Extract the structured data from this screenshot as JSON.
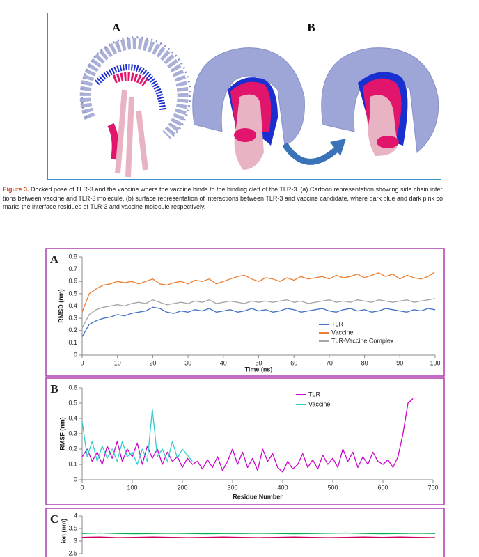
{
  "figure": {
    "labels": [
      "A",
      "B"
    ],
    "caption_label": "Figure 3.",
    "caption_lines": [
      "Docked pose of TLR-3 and the vaccine where the vaccine binds to the binding cleft of the TLR-3. (a) Cartoon representation showing side chain inter",
      "tions between vaccine and TLR-3 molecule, (b) surface representation of interactions between TLR-3 and vaccine candidate, where dark blue and dark pink co",
      "marks the interface residues of TLR-3 and vaccine molecule respectively."
    ]
  },
  "chart_data": [
    {
      "type": "line",
      "panel": "A",
      "xlabel": "Time (ns)",
      "ylabel": "RMSD (nm)",
      "legend": "lower right",
      "xlim": [
        0,
        100
      ],
      "xticks": [
        0,
        10,
        20,
        30,
        40,
        50,
        60,
        70,
        80,
        90,
        100
      ],
      "ylim": [
        0,
        0.8
      ],
      "yticks": [
        0,
        0.1,
        0.2,
        0.3,
        0.4,
        0.5,
        0.6,
        0.7,
        0.8
      ],
      "x": [
        0,
        2,
        4,
        6,
        8,
        10,
        12,
        14,
        16,
        18,
        20,
        22,
        24,
        26,
        28,
        30,
        32,
        34,
        36,
        38,
        40,
        42,
        44,
        46,
        48,
        50,
        52,
        54,
        56,
        58,
        60,
        62,
        64,
        66,
        68,
        70,
        72,
        74,
        76,
        78,
        80,
        82,
        84,
        86,
        88,
        90,
        92,
        94,
        96,
        98,
        100
      ],
      "series": [
        {
          "name": "TLR",
          "color": "#4472c4",
          "values": [
            0.15,
            0.25,
            0.28,
            0.3,
            0.31,
            0.33,
            0.32,
            0.34,
            0.35,
            0.36,
            0.39,
            0.38,
            0.35,
            0.34,
            0.36,
            0.35,
            0.37,
            0.36,
            0.38,
            0.35,
            0.36,
            0.37,
            0.35,
            0.36,
            0.38,
            0.36,
            0.37,
            0.35,
            0.36,
            0.38,
            0.37,
            0.35,
            0.36,
            0.37,
            0.38,
            0.36,
            0.35,
            0.37,
            0.38,
            0.36,
            0.37,
            0.35,
            0.36,
            0.38,
            0.37,
            0.36,
            0.35,
            0.37,
            0.36,
            0.38,
            0.37
          ]
        },
        {
          "name": "Vaccine",
          "color": "#ed7d31",
          "values": [
            0.35,
            0.5,
            0.54,
            0.57,
            0.58,
            0.6,
            0.59,
            0.6,
            0.58,
            0.6,
            0.62,
            0.58,
            0.57,
            0.59,
            0.6,
            0.58,
            0.61,
            0.6,
            0.62,
            0.58,
            0.6,
            0.62,
            0.64,
            0.65,
            0.62,
            0.6,
            0.63,
            0.62,
            0.6,
            0.63,
            0.61,
            0.64,
            0.62,
            0.63,
            0.64,
            0.62,
            0.65,
            0.63,
            0.64,
            0.66,
            0.63,
            0.65,
            0.67,
            0.64,
            0.66,
            0.62,
            0.65,
            0.63,
            0.62,
            0.64,
            0.68
          ]
        },
        {
          "name": "TLR-Vaccine Complex",
          "color": "#a5a5a5",
          "values": [
            0.22,
            0.33,
            0.37,
            0.39,
            0.4,
            0.41,
            0.4,
            0.42,
            0.43,
            0.42,
            0.45,
            0.43,
            0.41,
            0.42,
            0.43,
            0.42,
            0.44,
            0.43,
            0.45,
            0.42,
            0.43,
            0.44,
            0.43,
            0.42,
            0.44,
            0.43,
            0.44,
            0.43,
            0.44,
            0.45,
            0.43,
            0.44,
            0.42,
            0.43,
            0.44,
            0.45,
            0.43,
            0.44,
            0.43,
            0.45,
            0.44,
            0.43,
            0.45,
            0.44,
            0.43,
            0.44,
            0.45,
            0.43,
            0.44,
            0.45,
            0.46
          ]
        }
      ]
    },
    {
      "type": "line",
      "panel": "B",
      "xlabel": "Residue Number",
      "ylabel": "RMSF (nm)",
      "legend": "upper center",
      "xlim": [
        0,
        700
      ],
      "xticks": [
        0,
        100,
        200,
        300,
        400,
        500,
        600,
        700
      ],
      "ylim": [
        0,
        0.6
      ],
      "yticks": [
        0,
        0.1,
        0.2,
        0.3,
        0.4,
        0.5,
        0.6
      ],
      "series": [
        {
          "name": "TLR",
          "color": "#cc00cc",
          "x": [
            0,
            10,
            20,
            30,
            40,
            50,
            60,
            70,
            80,
            90,
            100,
            110,
            120,
            130,
            140,
            150,
            160,
            170,
            180,
            190,
            200,
            210,
            220,
            230,
            240,
            250,
            260,
            270,
            280,
            290,
            300,
            310,
            320,
            330,
            340,
            350,
            360,
            370,
            380,
            390,
            400,
            410,
            420,
            430,
            440,
            450,
            460,
            470,
            480,
            490,
            500,
            510,
            520,
            530,
            540,
            550,
            560,
            570,
            580,
            590,
            600,
            610,
            620,
            630,
            640,
            650,
            660
          ],
          "values": [
            0.15,
            0.2,
            0.12,
            0.18,
            0.1,
            0.22,
            0.14,
            0.25,
            0.12,
            0.2,
            0.15,
            0.24,
            0.1,
            0.22,
            0.14,
            0.2,
            0.1,
            0.18,
            0.12,
            0.15,
            0.08,
            0.14,
            0.1,
            0.12,
            0.07,
            0.13,
            0.08,
            0.15,
            0.06,
            0.12,
            0.2,
            0.1,
            0.18,
            0.08,
            0.14,
            0.06,
            0.2,
            0.12,
            0.17,
            0.08,
            0.05,
            0.12,
            0.07,
            0.1,
            0.17,
            0.08,
            0.13,
            0.07,
            0.16,
            0.1,
            0.14,
            0.08,
            0.2,
            0.12,
            0.18,
            0.08,
            0.15,
            0.1,
            0.18,
            0.12,
            0.1,
            0.13,
            0.08,
            0.15,
            0.3,
            0.5,
            0.53
          ]
        },
        {
          "name": "Vaccine",
          "color": "#33cccc",
          "x": [
            0,
            10,
            20,
            30,
            40,
            50,
            60,
            70,
            80,
            90,
            100,
            110,
            120,
            130,
            140,
            150,
            160,
            170,
            180,
            190,
            200,
            210,
            220
          ],
          "values": [
            0.38,
            0.15,
            0.25,
            0.12,
            0.22,
            0.14,
            0.2,
            0.12,
            0.25,
            0.15,
            0.18,
            0.1,
            0.2,
            0.12,
            0.46,
            0.15,
            0.2,
            0.12,
            0.25,
            0.14,
            0.2,
            0.16,
            0.12
          ]
        }
      ]
    },
    {
      "type": "line",
      "panel": "C",
      "ylabel": "ion (nm)",
      "xlim": [
        0,
        100
      ],
      "ylim": [
        2.5,
        4
      ],
      "yticks": [
        2.5,
        3,
        3.5,
        4
      ],
      "x": [
        0,
        5,
        10,
        15,
        20,
        25,
        30,
        35,
        40,
        45,
        50,
        55,
        60,
        65,
        70,
        75,
        80,
        85,
        90,
        95,
        100
      ],
      "series": [
        {
          "color": "#00b050",
          "values": [
            3.3,
            3.32,
            3.3,
            3.29,
            3.3,
            3.31,
            3.3,
            3.29,
            3.3,
            3.3,
            3.31,
            3.3,
            3.29,
            3.3,
            3.31,
            3.32,
            3.3,
            3.29,
            3.3,
            3.31,
            3.3
          ]
        },
        {
          "color": "#cc0066",
          "values": [
            3.15,
            3.16,
            3.14,
            3.15,
            3.16,
            3.15,
            3.14,
            3.15,
            3.16,
            3.15,
            3.14,
            3.15,
            3.16,
            3.15,
            3.14,
            3.15,
            3.16,
            3.15,
            3.16,
            3.15,
            3.14
          ]
        }
      ]
    }
  ]
}
